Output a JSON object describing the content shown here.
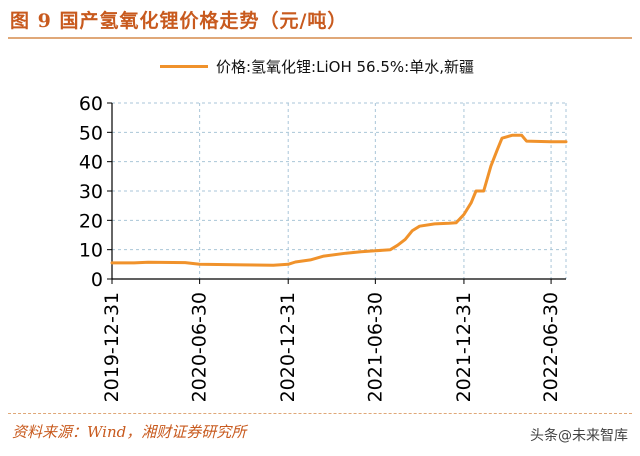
{
  "header": {
    "title": "图 9 国产氢氧化锂价格走势（元/吨）"
  },
  "footer": {
    "source": "资料来源：Wind，湘财证券研究所",
    "watermark": "头条@未来智库"
  },
  "colors": {
    "line": "#f0922b",
    "title": "#c85a1e",
    "grid": "#a9c6d8"
  },
  "chart_data": {
    "type": "line",
    "title": "",
    "xlabel": "",
    "ylabel": "",
    "ylim": [
      0,
      60
    ],
    "yticks": [
      0,
      10,
      20,
      30,
      40,
      50,
      60
    ],
    "xlim": [
      "2019-12-31",
      "2022-07-31"
    ],
    "xticks": [
      "2019-12-31",
      "2020-06-30",
      "2020-12-31",
      "2021-06-30",
      "2021-12-31",
      "2022-06-30"
    ],
    "grid": true,
    "legend": "top",
    "series": [
      {
        "name": "价格:氢氧化锂:LiOH 56.5%:单水,新疆",
        "color": "#f0922b",
        "points": [
          [
            "2019-12-31",
            5.5
          ],
          [
            "2020-02-15",
            5.5
          ],
          [
            "2020-03-15",
            5.7
          ],
          [
            "2020-05-31",
            5.6
          ],
          [
            "2020-06-30",
            5.0
          ],
          [
            "2020-09-30",
            4.8
          ],
          [
            "2020-11-30",
            4.7
          ],
          [
            "2020-12-31",
            5.0
          ],
          [
            "2021-01-15",
            5.8
          ],
          [
            "2021-02-15",
            6.5
          ],
          [
            "2021-03-15",
            7.8
          ],
          [
            "2021-04-30",
            8.8
          ],
          [
            "2021-05-31",
            9.3
          ],
          [
            "2021-06-30",
            9.6
          ],
          [
            "2021-07-31",
            10.0
          ],
          [
            "2021-08-15",
            11.5
          ],
          [
            "2021-08-31",
            13.5
          ],
          [
            "2021-09-15",
            16.5
          ],
          [
            "2021-09-30",
            18.0
          ],
          [
            "2021-10-31",
            18.8
          ],
          [
            "2021-11-30",
            19.0
          ],
          [
            "2021-12-15",
            19.2
          ],
          [
            "2021-12-31",
            22.0
          ],
          [
            "2022-01-15",
            26.0
          ],
          [
            "2022-01-25",
            30.0
          ],
          [
            "2022-02-10",
            30.0
          ],
          [
            "2022-02-25",
            38.5
          ],
          [
            "2022-03-10",
            44.0
          ],
          [
            "2022-03-20",
            48.0
          ],
          [
            "2022-04-10",
            49.0
          ],
          [
            "2022-04-30",
            49.0
          ],
          [
            "2022-05-10",
            47.0
          ],
          [
            "2022-06-30",
            46.8
          ],
          [
            "2022-07-31",
            46.8
          ]
        ]
      }
    ]
  }
}
